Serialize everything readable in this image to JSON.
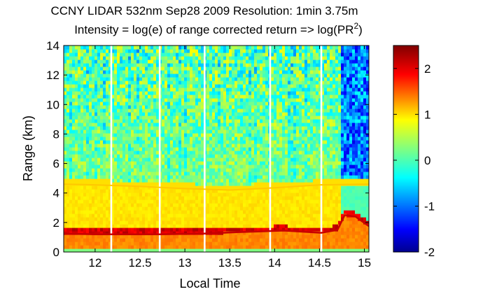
{
  "chart_data": {
    "type": "heatmap",
    "title": "CCNY LIDAR 532nm Sep28 2009 Resolution: 1min 3.75m",
    "subtitle_prefix": "Intensity = log(e) of range corrected return => log(PR",
    "subtitle_sup": "2",
    "subtitle_suffix": ")",
    "xlabel": "Local Time",
    "ylabel": "Range (km)",
    "xlim": [
      11.65,
      15.05
    ],
    "ylim": [
      0,
      14
    ],
    "xticks": [
      12,
      12.5,
      13,
      13.5,
      14,
      14.5,
      15
    ],
    "xtick_labels": [
      "12",
      "12.5",
      "13",
      "13.5",
      "14",
      "14.5",
      "15"
    ],
    "yticks": [
      0,
      2,
      4,
      6,
      8,
      10,
      12,
      14
    ],
    "ytick_labels": [
      "0",
      "2",
      "4",
      "6",
      "8",
      "10",
      "12",
      "14"
    ],
    "colorbar": {
      "clim": [
        -2,
        2.5
      ],
      "ticks": [
        -2,
        -1,
        0,
        1,
        2
      ],
      "tick_labels": [
        "-2",
        "-1",
        "0",
        "1",
        "2"
      ],
      "colormap": "jet"
    },
    "data_gaps_time": [
      12.18,
      12.72,
      13.22,
      13.95,
      14.52
    ],
    "boundary_layer_top_km": [
      {
        "t": 11.65,
        "z": 4.6
      },
      {
        "t": 12.0,
        "z": 4.55
      },
      {
        "t": 12.5,
        "z": 4.45
      },
      {
        "t": 13.0,
        "z": 4.3
      },
      {
        "t": 13.5,
        "z": 4.2
      },
      {
        "t": 14.0,
        "z": 4.35
      },
      {
        "t": 14.5,
        "z": 4.55
      },
      {
        "t": 15.05,
        "z": 4.6
      }
    ],
    "low_cloud_base_km": [
      {
        "t": 11.65,
        "z": 1.25
      },
      {
        "t": 12.0,
        "z": 1.2
      },
      {
        "t": 12.72,
        "z": 1.2
      },
      {
        "t": 13.2,
        "z": 1.25
      },
      {
        "t": 13.6,
        "z": 1.35
      },
      {
        "t": 14.1,
        "z": 1.45
      },
      {
        "t": 14.52,
        "z": 1.3
      },
      {
        "t": 14.7,
        "z": 1.5
      },
      {
        "t": 14.78,
        "z": 2.5
      },
      {
        "t": 14.9,
        "z": 2.4
      },
      {
        "t": 15.05,
        "z": 1.75
      }
    ]
  }
}
